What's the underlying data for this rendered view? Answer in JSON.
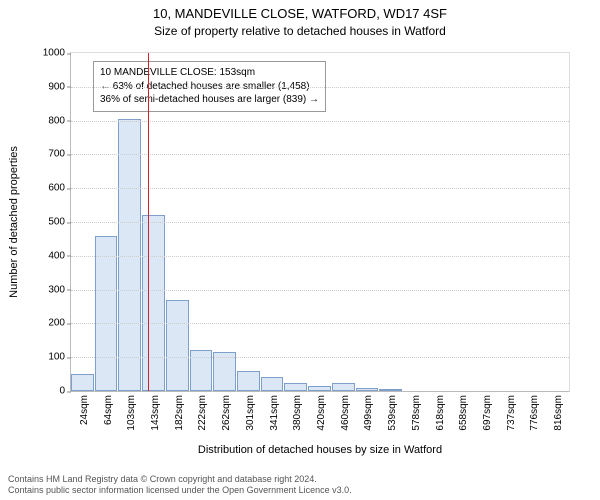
{
  "title": "10, MANDEVILLE CLOSE, WATFORD, WD17 4SF",
  "subtitle": "Size of property relative to detached houses in Watford",
  "ylabel": "Number of detached properties",
  "xlabel": "Distribution of detached houses by size in Watford",
  "chart": {
    "type": "histogram",
    "ylim": [
      0,
      1000
    ],
    "ytick_step": 100,
    "bar_fill": "#dbe7f5",
    "bar_stroke": "#7d9fc9",
    "grid_color": "#cccccc",
    "background": "#ffffff",
    "marker_color": "#cc2233",
    "tick_fontsize": 10,
    "label_fontsize": 11,
    "title_fontsize": 13,
    "annotation_fontsize": 10,
    "categories": [
      "24sqm",
      "64sqm",
      "103sqm",
      "143sqm",
      "182sqm",
      "222sqm",
      "262sqm",
      "301sqm",
      "341sqm",
      "380sqm",
      "420sqm",
      "460sqm",
      "499sqm",
      "539sqm",
      "578sqm",
      "618sqm",
      "658sqm",
      "697sqm",
      "737sqm",
      "776sqm",
      "816sqm"
    ],
    "values": [
      50,
      460,
      805,
      520,
      270,
      120,
      115,
      60,
      40,
      25,
      15,
      25,
      10,
      5,
      0,
      0,
      0,
      0,
      0,
      0,
      0
    ],
    "marker_after_index": 2
  },
  "annotation": {
    "line1": "10 MANDEVILLE CLOSE: 153sqm",
    "line2": "← 63% of detached houses are smaller (1,458)",
    "line3": "36% of semi-detached houses are larger (839) →"
  },
  "footer": {
    "line1": "Contains HM Land Registry data © Crown copyright and database right 2024.",
    "line2": "Contains public sector information licensed under the Open Government Licence v3.0."
  }
}
